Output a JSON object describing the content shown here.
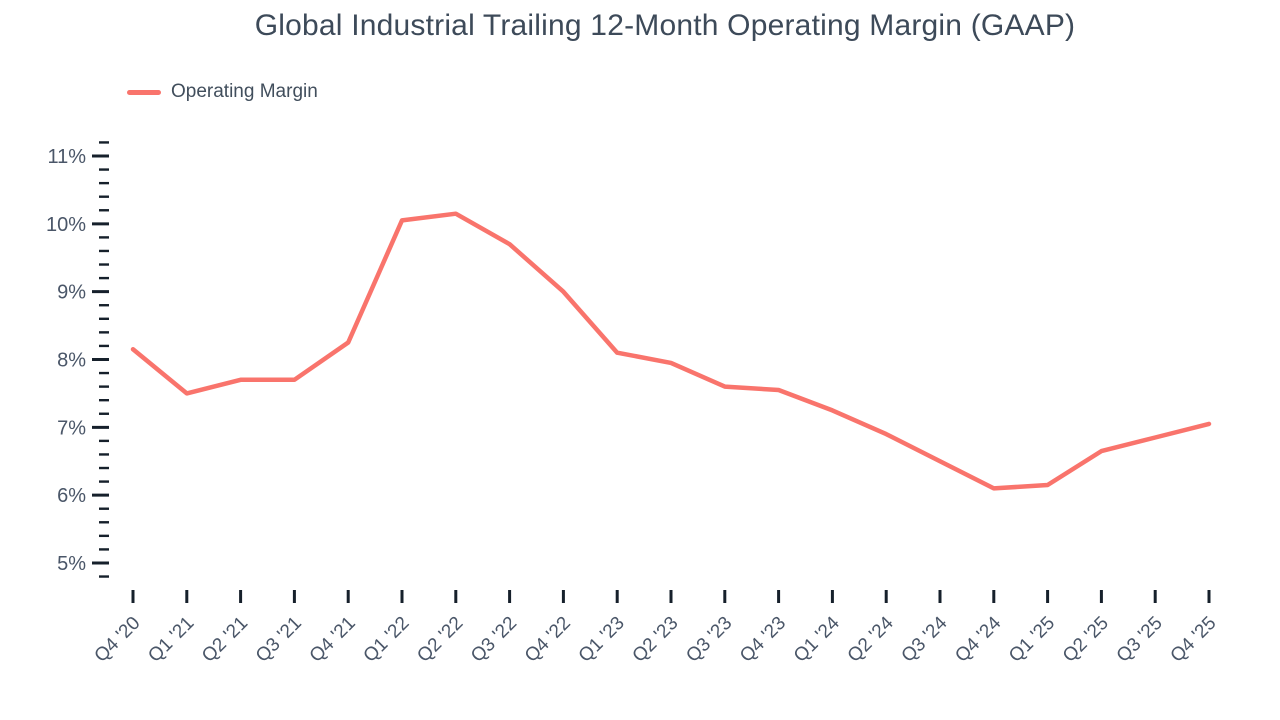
{
  "page": {
    "title": "Global Industrial Trailing 12-Month Operating Margin (GAAP)"
  },
  "legend": {
    "items": [
      {
        "label": "Operating Margin",
        "color": "#f9746c"
      }
    ]
  },
  "chart_data": {
    "type": "line",
    "title": "Global Industrial Trailing 12-Month Operating Margin (GAAP)",
    "xlabel": "",
    "ylabel": "",
    "grid": false,
    "legend_position": "top-left",
    "categories": [
      "Q4 '20",
      "Q1 '21",
      "Q2 '21",
      "Q3 '21",
      "Q4 '21",
      "Q1 '22",
      "Q2 '22",
      "Q3 '22",
      "Q4 '22",
      "Q1 '23",
      "Q2 '23",
      "Q3 '23",
      "Q4 '23",
      "Q1 '24",
      "Q2 '24",
      "Q3 '24",
      "Q4 '24",
      "Q1 '25",
      "Q2 '25",
      "Q3 '25",
      "Q4 '25"
    ],
    "series": [
      {
        "name": "Operating Margin",
        "color": "#f9746c",
        "unit": "%",
        "values": [
          8.15,
          7.5,
          7.7,
          7.7,
          8.25,
          10.05,
          10.15,
          9.7,
          9.0,
          8.1,
          7.95,
          7.6,
          7.55,
          7.25,
          6.9,
          6.5,
          6.1,
          6.15,
          6.65,
          6.85,
          7.05
        ]
      }
    ],
    "ylim": [
      4.8,
      11.2
    ],
    "y_major_ticks": [
      5,
      6,
      7,
      8,
      9,
      10,
      11
    ],
    "y_major_tick_labels": [
      "5%",
      "6%",
      "7%",
      "8%",
      "9%",
      "10%",
      "11%"
    ],
    "y_minor_step": 0.2
  }
}
